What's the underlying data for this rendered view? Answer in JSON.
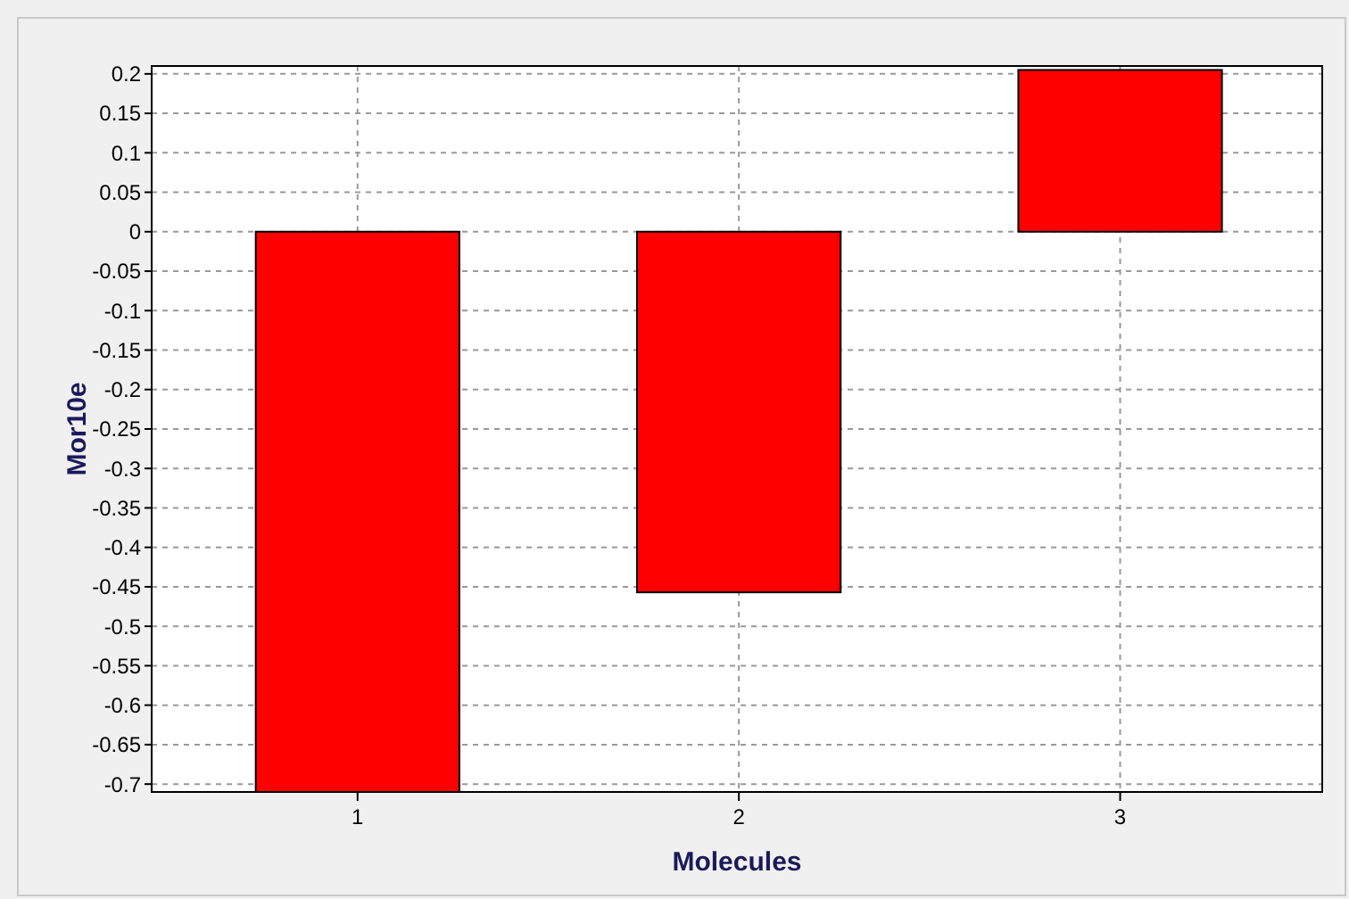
{
  "chart_data": {
    "type": "bar",
    "xlabel": "Molecules",
    "ylabel": "Mor10e",
    "x": [
      1,
      2,
      3
    ],
    "values": [
      -0.71,
      -0.457,
      0.205
    ],
    "color": "#ff0000",
    "xlim": [
      0.46,
      3.53
    ],
    "xticks": [
      1,
      2,
      3
    ],
    "ylim": [
      -0.71,
      0.21
    ],
    "yticks": [
      0.2,
      0.15,
      0.1,
      0.05,
      0,
      -0.05,
      -0.1,
      -0.15,
      -0.2,
      -0.25,
      -0.3,
      -0.35,
      -0.4,
      -0.45,
      -0.5,
      -0.55,
      -0.6,
      -0.65,
      -0.7
    ],
    "grid": true
  }
}
